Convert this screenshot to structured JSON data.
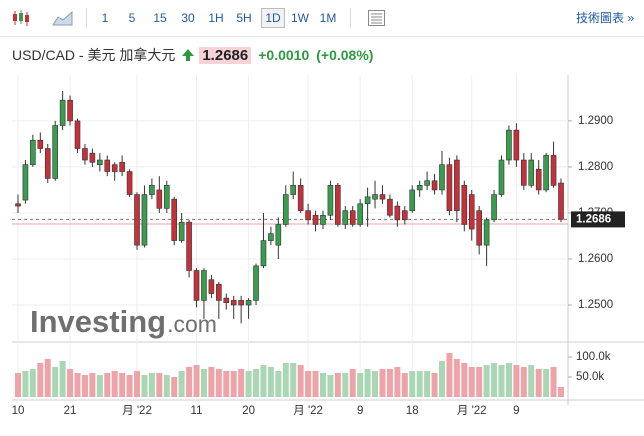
{
  "toolbar": {
    "intervals": [
      "1",
      "5",
      "15",
      "30",
      "1H",
      "5H",
      "1D",
      "1W",
      "1M"
    ],
    "selected_index": 6,
    "link": "技術圖表 »"
  },
  "header": {
    "symbol": "USD/CAD - 美元 加拿大元",
    "price": "1.2686",
    "change": "+0.0010",
    "change_pct": "(+0.08%)"
  },
  "chart_data": {
    "type": "candlestick",
    "watermark": [
      "Investing",
      ".com"
    ],
    "categories": [
      "10",
      null,
      null,
      null,
      null,
      null,
      null,
      "21",
      null,
      null,
      null,
      null,
      null,
      null,
      null,
      null,
      "月 '22",
      null,
      null,
      null,
      null,
      null,
      null,
      null,
      "11",
      null,
      null,
      null,
      null,
      null,
      null,
      "20",
      null,
      null,
      null,
      null,
      null,
      null,
      null,
      "月 '22",
      null,
      null,
      null,
      null,
      null,
      null,
      "9",
      null,
      null,
      null,
      null,
      null,
      null,
      "18",
      null,
      null,
      null,
      null,
      null,
      null,
      null,
      "月 '22",
      null,
      null,
      null,
      null,
      null,
      "9",
      null,
      null,
      null,
      null,
      null,
      null
    ],
    "open": [
      1.272,
      1.2728,
      1.2805,
      1.2858,
      1.284,
      1.2775,
      1.289,
      1.2945,
      1.29,
      1.284,
      1.283,
      1.2805,
      1.2815,
      1.2805,
      1.281,
      1.279,
      1.274,
      1.263,
      1.274,
      1.275,
      1.271,
      1.273,
      1.264,
      1.268,
      1.2575,
      1.251,
      1.2555,
      1.2545,
      1.2515,
      1.251,
      1.251,
      1.25,
      1.251,
      1.2585,
      1.264,
      1.263,
      1.2675,
      1.274,
      1.276,
      1.2705,
      1.2695,
      1.2675,
      1.2695,
      1.276,
      1.2675,
      1.2705,
      1.2675,
      1.272,
      1.273,
      1.274,
      1.273,
      1.2715,
      1.2705,
      1.2705,
      1.275,
      1.276,
      1.277,
      1.275,
      1.2805,
      1.2815,
      1.276,
      1.274,
      1.2705,
      1.263,
      1.2685,
      1.274,
      1.2815,
      1.288,
      1.2815,
      1.276,
      1.2795,
      1.275,
      1.2825,
      1.2765
    ],
    "high": [
      1.274,
      1.2815,
      1.287,
      1.2875,
      1.285,
      1.29,
      1.2965,
      1.2955,
      1.2905,
      1.285,
      1.284,
      1.283,
      1.2825,
      1.281,
      1.2825,
      1.2795,
      1.2745,
      1.276,
      1.2775,
      1.278,
      1.277,
      1.2735,
      1.27,
      1.2685,
      1.258,
      1.258,
      1.2565,
      1.255,
      1.2525,
      1.252,
      1.252,
      1.2515,
      1.259,
      1.27,
      1.267,
      1.269,
      1.276,
      1.279,
      1.2775,
      1.272,
      1.2705,
      1.2705,
      1.277,
      1.2765,
      1.2715,
      1.2715,
      1.273,
      1.2755,
      1.277,
      1.276,
      1.274,
      1.2725,
      1.2715,
      1.276,
      1.277,
      1.279,
      1.2785,
      1.2835,
      1.282,
      1.2825,
      1.277,
      1.275,
      1.2715,
      1.269,
      1.275,
      1.2825,
      1.289,
      1.2895,
      1.283,
      1.283,
      1.2815,
      1.283,
      1.2855,
      1.2775
    ],
    "low": [
      1.27,
      1.272,
      1.28,
      1.283,
      1.2765,
      1.277,
      1.288,
      1.289,
      1.283,
      1.2805,
      1.28,
      1.279,
      1.278,
      1.277,
      1.278,
      1.2735,
      1.262,
      1.2625,
      1.273,
      1.27,
      1.27,
      1.263,
      1.2635,
      1.256,
      1.2495,
      1.247,
      1.2515,
      1.247,
      1.249,
      1.247,
      1.246,
      1.247,
      1.25,
      1.258,
      1.263,
      1.26,
      1.267,
      1.273,
      1.27,
      1.2675,
      1.266,
      1.2665,
      1.2685,
      1.267,
      1.2665,
      1.267,
      1.267,
      1.267,
      1.271,
      1.272,
      1.269,
      1.267,
      1.2675,
      1.27,
      1.2735,
      1.275,
      1.274,
      1.274,
      1.2695,
      1.268,
      1.266,
      1.264,
      1.261,
      1.2585,
      1.268,
      1.2735,
      1.2805,
      1.28,
      1.275,
      1.2755,
      1.274,
      1.2745,
      1.2755,
      1.268
    ],
    "close": [
      1.2715,
      1.2805,
      1.2858,
      1.284,
      1.2775,
      1.289,
      1.2945,
      1.29,
      1.284,
      1.2815,
      1.281,
      1.2815,
      1.279,
      1.279,
      1.279,
      1.274,
      1.263,
      1.274,
      1.276,
      1.271,
      1.276,
      1.264,
      1.268,
      1.2575,
      1.251,
      1.2575,
      1.2525,
      1.251,
      1.2505,
      1.25,
      1.25,
      1.251,
      1.2585,
      1.264,
      1.2655,
      1.2675,
      1.274,
      1.276,
      1.2705,
      1.2685,
      1.2675,
      1.2695,
      1.276,
      1.2675,
      1.2705,
      1.2675,
      1.272,
      1.2735,
      1.274,
      1.273,
      1.2695,
      1.2685,
      1.2685,
      1.275,
      1.276,
      1.277,
      1.275,
      1.2805,
      1.2705,
      1.2705,
      1.2675,
      1.2665,
      1.263,
      1.2685,
      1.274,
      1.2815,
      1.288,
      1.2815,
      1.276,
      1.2815,
      1.275,
      1.2825,
      1.276,
      1.2686
    ],
    "volume": [
      60000,
      65000,
      70000,
      85000,
      95000,
      75000,
      90000,
      70000,
      60000,
      55000,
      60000,
      55000,
      60000,
      65000,
      60000,
      55000,
      65000,
      55000,
      60000,
      60000,
      55000,
      50000,
      65000,
      75000,
      80000,
      70000,
      75000,
      70000,
      65000,
      65000,
      70000,
      65000,
      70000,
      80000,
      75000,
      65000,
      85000,
      85000,
      80000,
      65000,
      65000,
      60000,
      55000,
      60000,
      60000,
      70000,
      60000,
      70000,
      65000,
      70000,
      70000,
      75000,
      60000,
      65000,
      65000,
      65000,
      60000,
      90000,
      110000,
      95000,
      85000,
      75000,
      75000,
      80000,
      85000,
      80000,
      85000,
      80000,
      75000,
      80000,
      70000,
      70000,
      75000,
      25000
    ],
    "up_color": "#3a9c4f",
    "down_color": "#c4313a",
    "up_volume_color": "#a9d6b3",
    "down_volume_color": "#eda3a8",
    "prev_close": 1.2676,
    "ylim": [
      1.2424,
      1.2978
    ],
    "yticks": [
      {
        "value": 1.29,
        "label": "1.2900"
      },
      {
        "value": 1.28,
        "label": "1.2800"
      },
      {
        "value": 1.27,
        "label": "1.2700"
      },
      {
        "value": 1.26,
        "label": "1.2600"
      },
      {
        "value": 1.25,
        "label": "1.2500"
      }
    ],
    "y2lim": [
      0,
      130000
    ],
    "y2ticks": [
      {
        "value": 100000,
        "label": "100.0k"
      },
      {
        "value": 50000,
        "label": "50.0k"
      }
    ],
    "grid": true
  }
}
